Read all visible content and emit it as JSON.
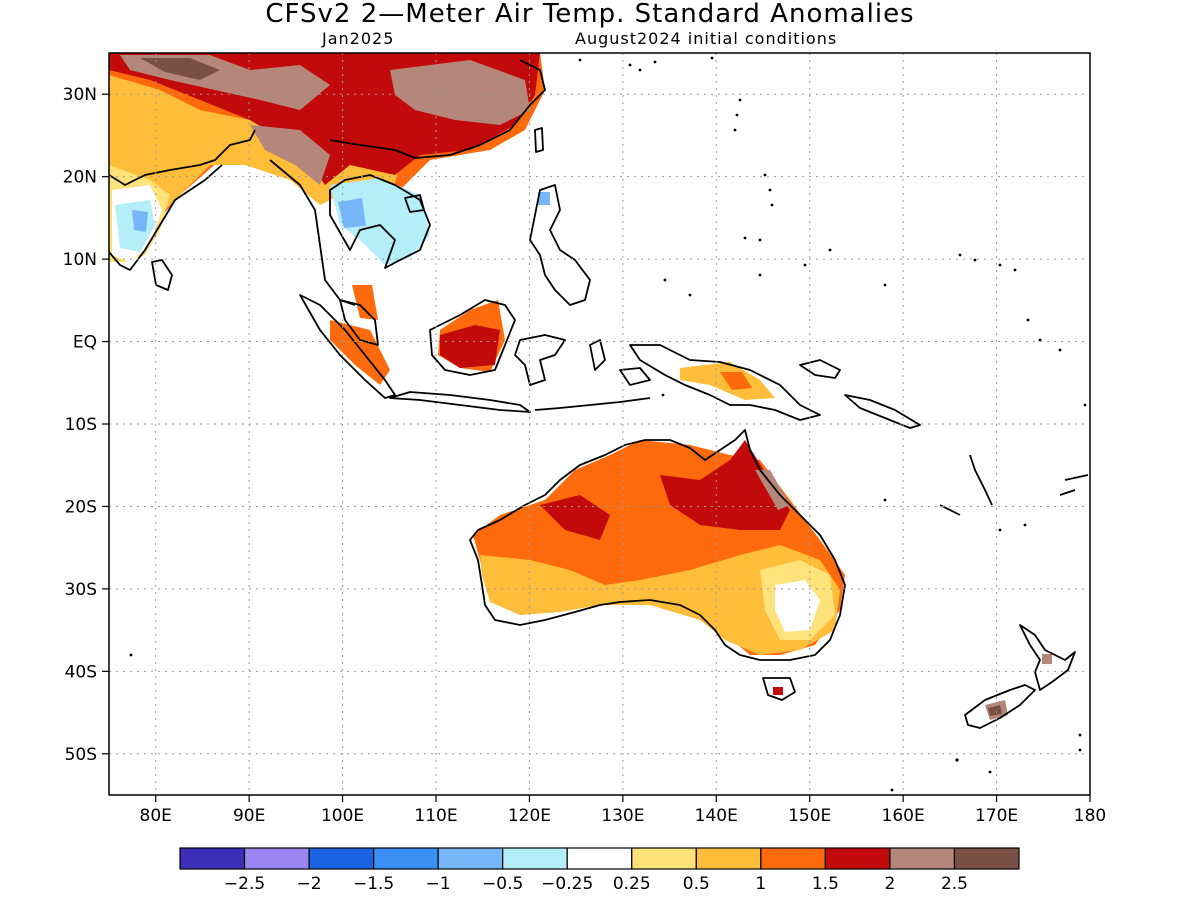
{
  "title": "CFSv2 2—Meter Air Temp. Standard Anomalies",
  "valid_month": "Jan2025",
  "init_conditions": "August2024 initial conditions",
  "map": {
    "projection": "lat-lon",
    "lon_range": [
      75,
      180
    ],
    "lat_range": [
      -55,
      35
    ],
    "grid": true
  },
  "axes": {
    "lat_ticks": [
      {
        "label": "30N",
        "lat": 30
      },
      {
        "label": "20N",
        "lat": 20
      },
      {
        "label": "10N",
        "lat": 10
      },
      {
        "label": "EQ",
        "lat": 0
      },
      {
        "label": "10S",
        "lat": -10
      },
      {
        "label": "20S",
        "lat": -20
      },
      {
        "label": "30S",
        "lat": -30
      },
      {
        "label": "40S",
        "lat": -40
      },
      {
        "label": "50S",
        "lat": -50
      }
    ],
    "lon_ticks": [
      {
        "label": "80E",
        "lon": 80
      },
      {
        "label": "90E",
        "lon": 90
      },
      {
        "label": "100E",
        "lon": 100
      },
      {
        "label": "110E",
        "lon": 110
      },
      {
        "label": "120E",
        "lon": 120
      },
      {
        "label": "130E",
        "lon": 130
      },
      {
        "label": "140E",
        "lon": 140
      },
      {
        "label": "150E",
        "lon": 150
      },
      {
        "label": "160E",
        "lon": 160
      },
      {
        "label": "170E",
        "lon": 170
      },
      {
        "label": "180",
        "lon": 180
      }
    ]
  },
  "colorbar": {
    "colors": [
      "#3c2eb6",
      "#9a87f2",
      "#1c63e3",
      "#3b8ff3",
      "#78b7f7",
      "#b3eef9",
      "#ffffff",
      "#ffe27a",
      "#ffbd3a",
      "#ff6a0d",
      "#c30a0a",
      "#b4877a",
      "#7a5044"
    ],
    "labels": [
      "−2.5",
      "−2",
      "−1.5",
      "−1",
      "−0.5",
      "−0.25",
      "0.25",
      "0.5",
      "1",
      "1.5",
      "2",
      "2.5"
    ]
  },
  "anomaly_colors": {
    "very_high": "#7a5044",
    "high": "#b4877a",
    "strong_warm": "#c30a0a",
    "warm": "#ff6a0d",
    "mild_warm": "#ffbd3a",
    "slight_warm": "#ffe27a",
    "slight_cool": "#b3eef9",
    "cool": "#78b7f7"
  }
}
